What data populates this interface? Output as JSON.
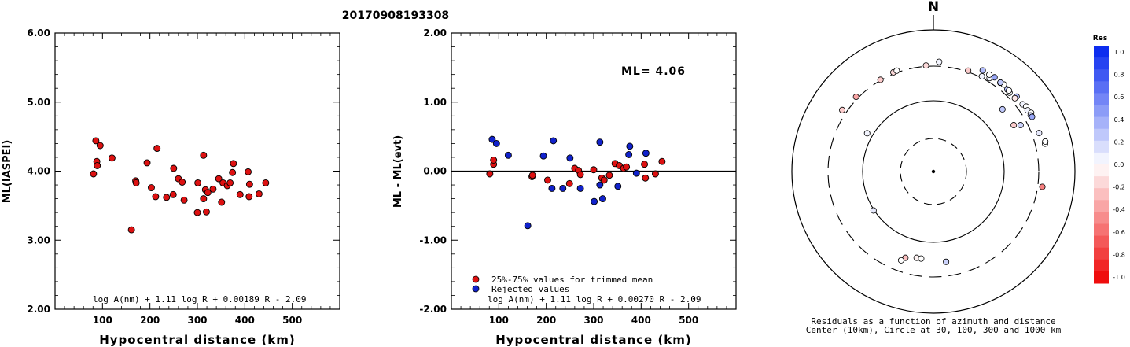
{
  "title": "20170908193308",
  "chart_data": [
    {
      "type": "scatter",
      "name": "ml-vs-distance",
      "xlabel": "Hypocentral distance (km)",
      "ylabel": "ML(IASPEI)",
      "xlim": [
        0,
        600
      ],
      "ylim": [
        2.0,
        6.0
      ],
      "xticks": [
        "100",
        "200",
        "300",
        "400",
        "500"
      ],
      "yticks": [
        "2.00",
        "3.00",
        "4.00",
        "5.00",
        "6.00"
      ],
      "formula": "log A(nm) + 1.11 log R + 0.00189 R - 2.09",
      "point_color": "#dd1111",
      "points": [
        [
          81,
          3.96
        ],
        [
          86,
          4.44
        ],
        [
          88,
          4.14
        ],
        [
          89,
          4.08
        ],
        [
          95,
          4.37
        ],
        [
          120,
          4.19
        ],
        [
          161,
          3.15
        ],
        [
          170,
          3.86
        ],
        [
          171,
          3.83
        ],
        [
          194,
          4.12
        ],
        [
          203,
          3.76
        ],
        [
          212,
          3.63
        ],
        [
          215,
          4.33
        ],
        [
          235,
          3.62
        ],
        [
          249,
          3.66
        ],
        [
          250,
          4.04
        ],
        [
          260,
          3.89
        ],
        [
          268,
          3.84
        ],
        [
          272,
          3.58
        ],
        [
          300,
          3.4
        ],
        [
          301,
          3.83
        ],
        [
          313,
          4.23
        ],
        [
          313,
          3.6
        ],
        [
          317,
          3.73
        ],
        [
          319,
          3.41
        ],
        [
          322,
          3.69
        ],
        [
          333,
          3.74
        ],
        [
          345,
          3.89
        ],
        [
          351,
          3.55
        ],
        [
          354,
          3.83
        ],
        [
          363,
          3.79
        ],
        [
          369,
          3.83
        ],
        [
          374,
          3.98
        ],
        [
          376,
          4.11
        ],
        [
          390,
          3.66
        ],
        [
          407,
          3.99
        ],
        [
          409,
          3.63
        ],
        [
          410,
          3.81
        ],
        [
          430,
          3.67
        ],
        [
          444,
          3.83
        ]
      ]
    },
    {
      "type": "scatter",
      "name": "residual-vs-distance",
      "xlabel": "Hypocentral distance (km)",
      "ylabel": "ML - ML(evt)",
      "xlim": [
        0,
        600
      ],
      "ylim": [
        -2.0,
        2.0
      ],
      "xticks": [
        "100",
        "200",
        "300",
        "400",
        "500"
      ],
      "yticks": [
        "-2.00",
        "-1.00",
        "0.00",
        "1.00",
        "2.00"
      ],
      "annotation": "ML= 4.06",
      "legend": [
        {
          "label": "25%-75% values for trimmed mean",
          "color": "#dd1111"
        },
        {
          "label": "Rejected values",
          "color": "#1122cc"
        }
      ],
      "formula": "log A(nm) + 1.11 log R + 0.00270 R - 2.09",
      "series": [
        {
          "color": "#dd1111",
          "points": [
            [
              81,
              -0.04
            ],
            [
              89,
              0.1
            ],
            [
              89,
              0.16
            ],
            [
              170,
              -0.08
            ],
            [
              171,
              -0.06
            ],
            [
              203,
              -0.13
            ],
            [
              249,
              -0.18
            ],
            [
              260,
              0.04
            ],
            [
              268,
              0.01
            ],
            [
              272,
              -0.05
            ],
            [
              300,
              0.02
            ],
            [
              317,
              -0.1
            ],
            [
              322,
              -0.13
            ],
            [
              333,
              -0.06
            ],
            [
              345,
              0.11
            ],
            [
              354,
              0.08
            ],
            [
              363,
              0.04
            ],
            [
              369,
              0.06
            ],
            [
              407,
              0.1
            ],
            [
              409,
              -0.1
            ],
            [
              430,
              -0.04
            ],
            [
              444,
              0.14
            ]
          ]
        },
        {
          "color": "#1122cc",
          "points": [
            [
              86,
              0.46
            ],
            [
              95,
              0.4
            ],
            [
              120,
              0.23
            ],
            [
              161,
              -0.79
            ],
            [
              194,
              0.22
            ],
            [
              212,
              -0.25
            ],
            [
              215,
              0.44
            ],
            [
              235,
              -0.25
            ],
            [
              250,
              0.19
            ],
            [
              272,
              -0.25
            ],
            [
              301,
              -0.44
            ],
            [
              313,
              0.42
            ],
            [
              313,
              -0.2
            ],
            [
              319,
              -0.4
            ],
            [
              351,
              -0.22
            ],
            [
              374,
              0.24
            ],
            [
              376,
              0.36
            ],
            [
              390,
              -0.03
            ],
            [
              410,
              0.26
            ]
          ]
        }
      ]
    },
    {
      "type": "polar-scatter",
      "name": "azimuth-residual-map",
      "north_label": "N",
      "caption_line1": "Residuals as a function of azimuth and distance",
      "caption_line2": "Center (10km), Circle at 30, 100, 300 and 1000 km",
      "colorbar_title": "Res",
      "colorbar_ticks": [
        "1.0",
        "0.8",
        "0.6",
        "0.4",
        "0.2",
        "0.0",
        "-0.2",
        "-0.4",
        "-0.6",
        "-0.8",
        "-1.0"
      ],
      "color_positive": "#0022ee",
      "color_negative": "#ee0000",
      "points_az_dist_res": [
        [
          356,
          309,
          -0.15
        ],
        [
          3,
          347,
          0.05
        ],
        [
          19,
          313,
          -0.2
        ],
        [
          27,
          315,
          0.05
        ],
        [
          31,
          339,
          0.05
        ],
        [
          26,
          380,
          0.3
        ],
        [
          30,
          372,
          0.0
        ],
        [
          33,
          377,
          0.4
        ],
        [
          37,
          363,
          0.0
        ],
        [
          39,
          373,
          0.0
        ],
        [
          37,
          366,
          0.25
        ],
        [
          42,
          355,
          0.3
        ],
        [
          44,
          345,
          0.0
        ],
        [
          43,
          359,
          0.0
        ],
        [
          48,
          374,
          0.3
        ],
        [
          48,
          345,
          -0.1
        ],
        [
          53,
          370,
          0.05
        ],
        [
          55,
          390,
          0.0
        ],
        [
          57,
          378,
          0.05
        ],
        [
          59,
          400,
          0.0
        ],
        [
          60,
          378,
          0.2
        ],
        [
          61,
          384,
          0.4
        ],
        [
          48,
          202,
          0.25
        ],
        [
          60,
          201,
          -0.2
        ],
        [
          62,
          243,
          0.2
        ],
        [
          76,
          414,
          0.0
        ],
        [
          75,
          424,
          0.0
        ],
        [
          70,
          380,
          0.1
        ],
        [
          98,
          350,
          -0.5
        ],
        [
          300,
          120,
          0.05
        ],
        [
          304,
          350,
          -0.2
        ],
        [
          314,
          322,
          -0.35
        ],
        [
          330,
          305,
          -0.2
        ],
        [
          338,
          316,
          -0.15
        ],
        [
          340,
          320,
          0.0
        ],
        [
          237,
          102,
          0.1
        ],
        [
          172,
          191,
          0.2
        ],
        [
          191,
          172,
          -0.05
        ],
        [
          188,
          172,
          0.0
        ],
        [
          198,
          188,
          -0.25
        ],
        [
          200,
          212,
          0.0
        ]
      ]
    }
  ]
}
